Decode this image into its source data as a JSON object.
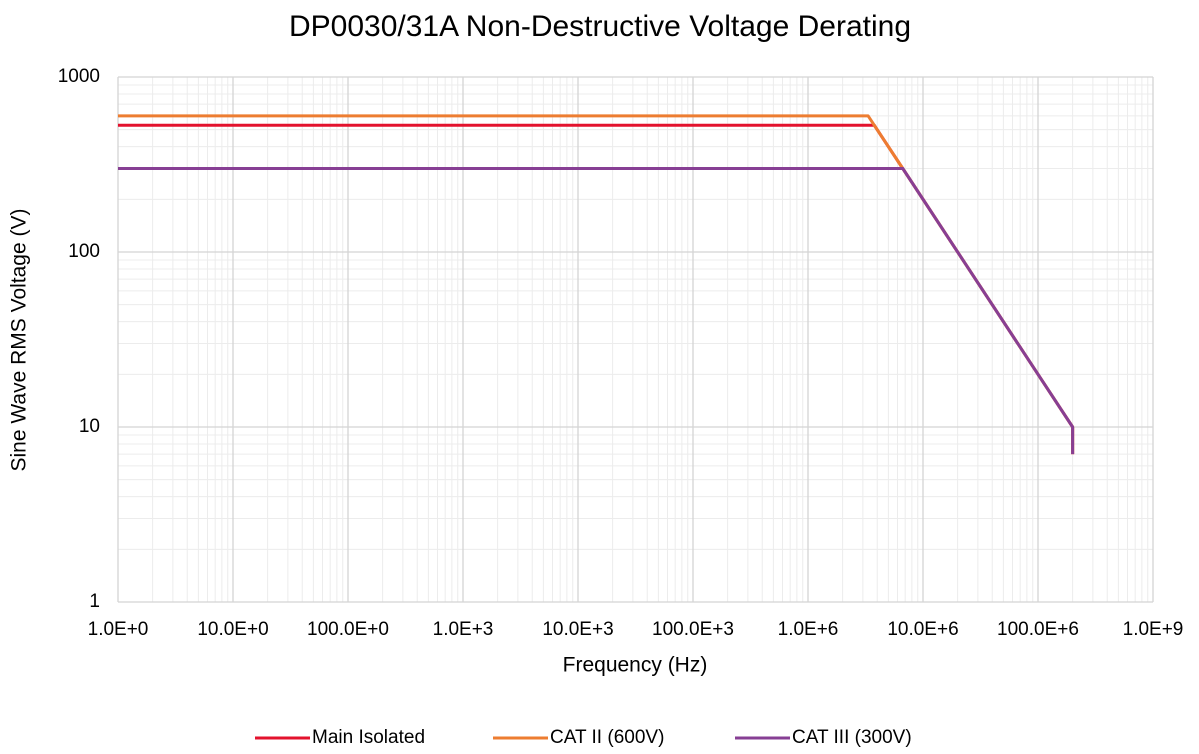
{
  "chart_data": {
    "type": "line",
    "title": "DP0030/31A Non-Destructive Voltage Derating",
    "xlabel": "Frequency (Hz)",
    "ylabel": "Sine Wave RMS Voltage (V)",
    "xscale": "log",
    "yscale": "log",
    "xlim": [
      1,
      1000000000
    ],
    "ylim": [
      1,
      1000
    ],
    "xticks": [
      {
        "value": 1,
        "label": "1.0E+0"
      },
      {
        "value": 10,
        "label": "10.0E+0"
      },
      {
        "value": 100,
        "label": "100.0E+0"
      },
      {
        "value": 1000,
        "label": "1.0E+3"
      },
      {
        "value": 10000,
        "label": "10.0E+3"
      },
      {
        "value": 100000,
        "label": "100.0E+3"
      },
      {
        "value": 1000000,
        "label": "1.0E+6"
      },
      {
        "value": 10000000,
        "label": "10.0E+6"
      },
      {
        "value": 100000000,
        "label": "100.0E+6"
      },
      {
        "value": 1000000000,
        "label": "1.0E+9"
      }
    ],
    "yticks": [
      1,
      10,
      100,
      1000
    ],
    "grid": true,
    "minor_grid": true,
    "legend": "bottom",
    "series": [
      {
        "name": "Main Isolated",
        "color": "#e3122d",
        "x": [
          1,
          3770000,
          6670000,
          200000000,
          200000000
        ],
        "values": [
          530,
          530,
          300,
          10,
          7
        ]
      },
      {
        "name": "CAT II (600V)",
        "color": "#ed7d31",
        "x": [
          1,
          3330000,
          6670000,
          200000000,
          200000000
        ],
        "values": [
          600,
          600,
          300,
          10,
          7
        ]
      },
      {
        "name": "CAT III (300V)",
        "color": "#873f94",
        "x": [
          1,
          6670000,
          200000000,
          200000000
        ],
        "values": [
          300,
          300,
          10,
          7
        ]
      }
    ]
  }
}
